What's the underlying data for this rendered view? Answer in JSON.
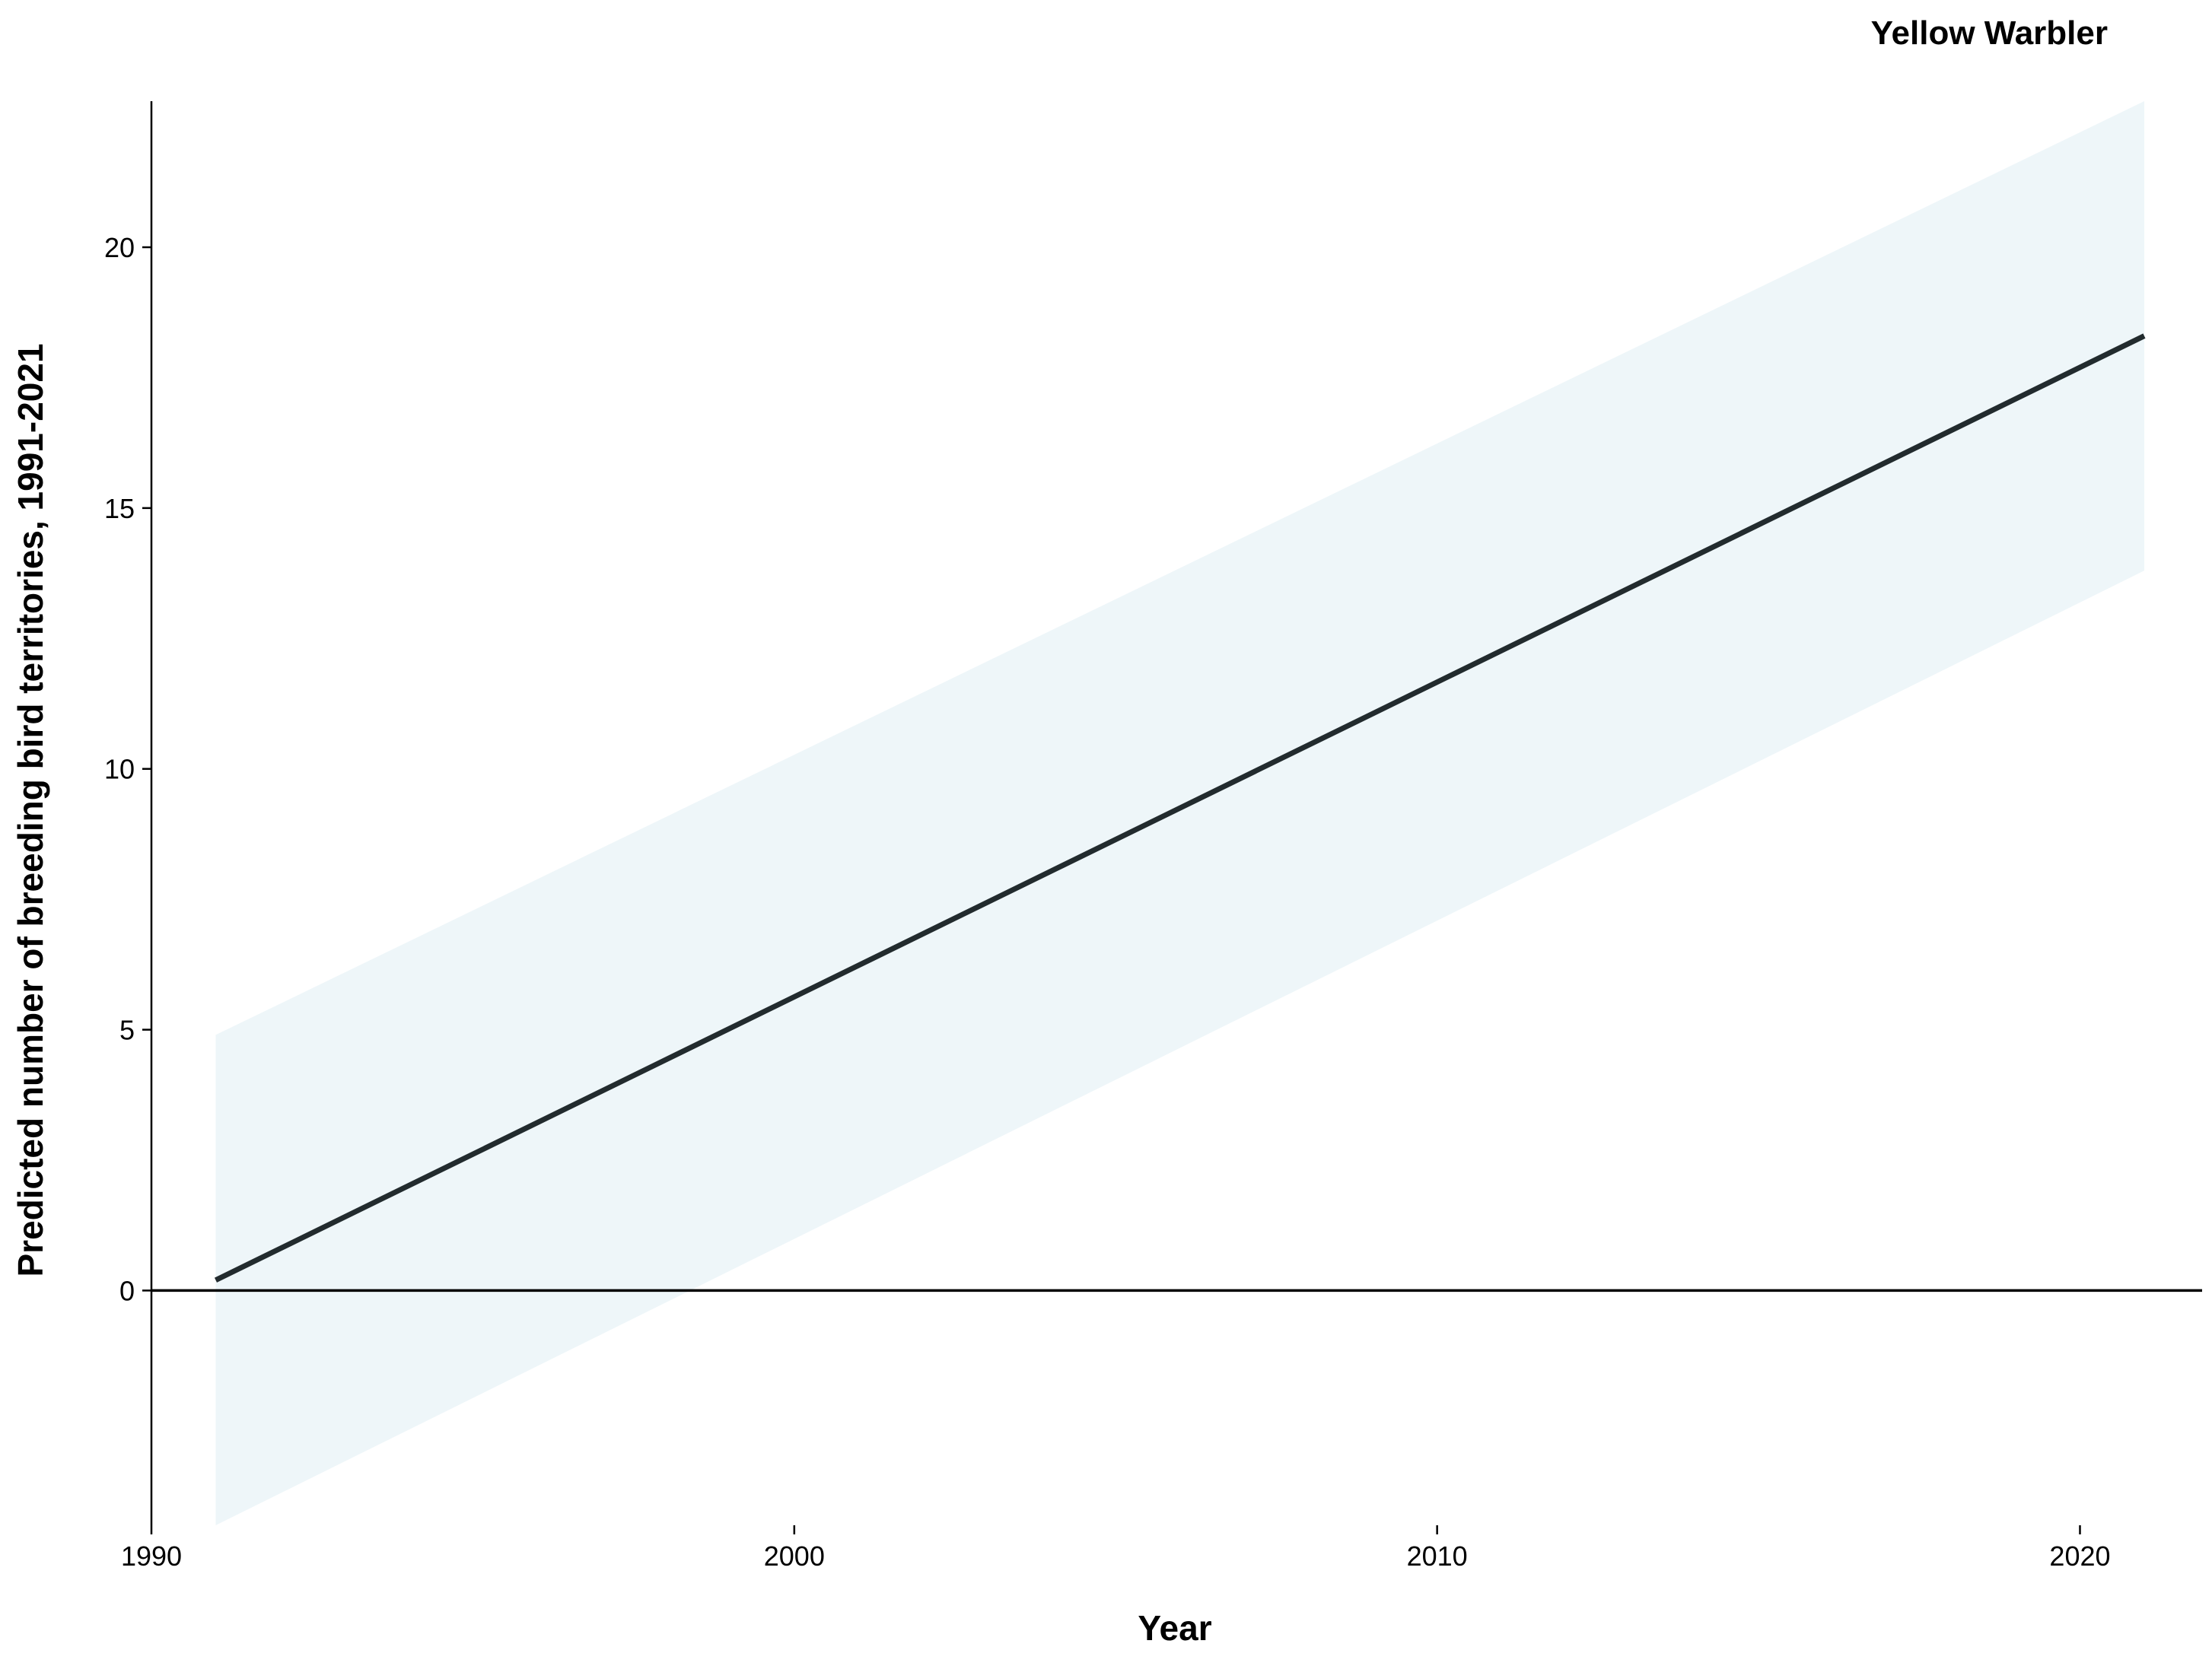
{
  "chart_data": {
    "type": "line",
    "title": "Yellow Warbler",
    "xlabel": "Year",
    "ylabel": "Predicted number of breeding bird territories, 1991-2021",
    "xlim": [
      1990,
      2021.9
    ],
    "ylim": [
      -4.5,
      22.8
    ],
    "x_ticks": [
      1990,
      2000,
      2010,
      2020
    ],
    "y_ticks": [
      0,
      5,
      10,
      15,
      20
    ],
    "x_tick_labels": [
      "1990",
      "2000",
      "2010",
      "2020"
    ],
    "y_tick_labels": [
      "0",
      "5",
      "10",
      "15",
      "20"
    ],
    "reference_line_y": 0,
    "grid": false,
    "series": [
      {
        "x": [
          1991,
          2021
        ],
        "values": [
          0.2,
          18.3
        ],
        "lower": [
          -4.5,
          13.8
        ],
        "upper": [
          4.9,
          22.8
        ],
        "color": "#222b2e",
        "band_color": "#eef6f9"
      }
    ]
  }
}
